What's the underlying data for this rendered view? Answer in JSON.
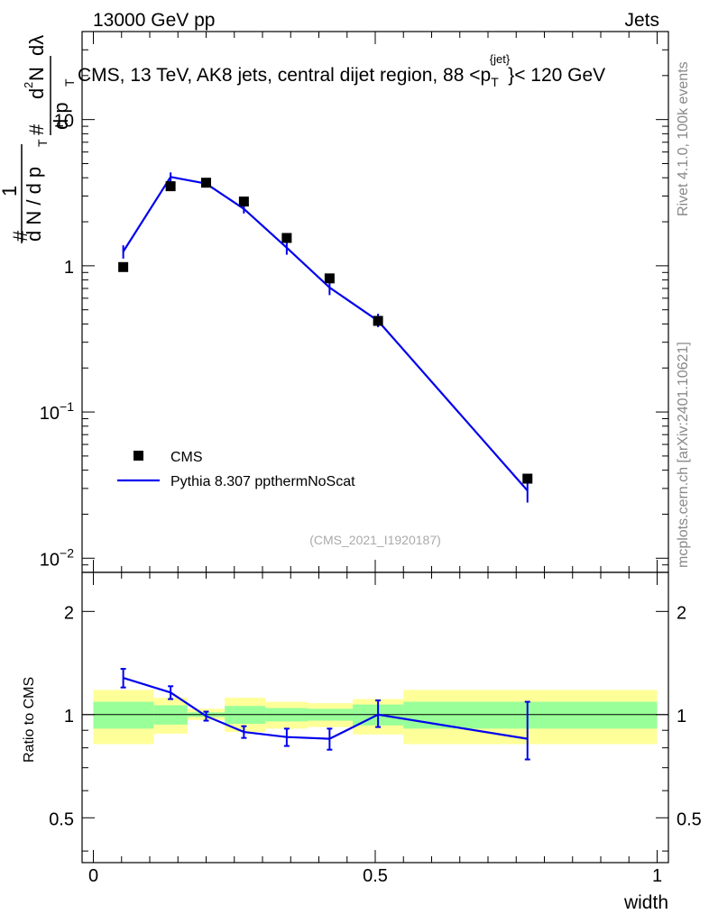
{
  "header": {
    "energy_label": "13000 GeV pp",
    "category_label": "Jets"
  },
  "side_labels": {
    "rivet": "Rivet 4.1.0,  100k events",
    "mcplots": "mcplots.cern.ch [arXiv:2401.10621]"
  },
  "chart_data": [
    {
      "type": "scatter",
      "panel": "main",
      "title": "CMS, 13 TeV, AK8 jets, central dijet region, 88 <p_T^{jet}< 120 GeV",
      "title_parts": {
        "prefix": "CMS, 13 TeV, AK8 jets, central dijet region, 88 <p",
        "sub": "T",
        "sup": "{jet}",
        "suffix": "}< 120 GeV"
      },
      "ylabel": "1/(dN/dp_T) d²N/(dp_T dλ)",
      "ylabel_parts": {
        "hash": "#",
        "one": "1",
        "dn_dpt": "d N / d p",
        "T": "T",
        "num": "d",
        "two": "2",
        "N": "N",
        "den": "d p",
        "dlambda": "dλ"
      },
      "yscale": "log",
      "ylim": [
        0.008,
        40
      ],
      "xlim": [
        -0.02,
        1.02
      ],
      "yticks": [
        {
          "value": 0.01,
          "base": "10",
          "exp": "−2"
        },
        {
          "value": 0.1,
          "base": "10",
          "exp": "−1"
        },
        {
          "value": 1,
          "base": "1",
          "exp": ""
        },
        {
          "value": 10,
          "base": "10",
          "exp": ""
        }
      ],
      "watermark": "(CMS_2021_I1920187)",
      "legend": {
        "position": "lower-left",
        "entries": [
          "CMS",
          "Pythia 8.307 ppthermNoScat"
        ]
      },
      "series": [
        {
          "name": "CMS",
          "marker": "square",
          "color": "#000000",
          "x": [
            0.053,
            0.137,
            0.2,
            0.267,
            0.343,
            0.419,
            0.505,
            0.77
          ],
          "y": [
            0.98,
            3.5,
            3.7,
            2.75,
            1.55,
            0.82,
            0.42,
            0.035
          ]
        },
        {
          "name": "Pythia 8.307 ppthermNoScat",
          "marker": "line",
          "color": "#0000ee",
          "x": [
            0.053,
            0.137,
            0.2,
            0.267,
            0.343,
            0.419,
            0.505,
            0.77
          ],
          "y": [
            1.25,
            4.05,
            3.65,
            2.45,
            1.33,
            0.71,
            0.42,
            0.029
          ],
          "err_lo": [
            1.12,
            3.75,
            3.5,
            2.28,
            1.19,
            0.63,
            0.38,
            0.024
          ],
          "err_hi": [
            1.38,
            4.35,
            3.82,
            2.62,
            1.47,
            0.8,
            0.47,
            0.034
          ]
        }
      ]
    },
    {
      "type": "line",
      "panel": "ratio",
      "ylabel": "Ratio to CMS",
      "xlabel": "width",
      "ylim": [
        0.37,
        2.6
      ],
      "xlim": [
        -0.02,
        1.02
      ],
      "yticks": [
        0.5,
        1,
        2
      ],
      "xticks": [
        {
          "value": 0,
          "label": "0"
        },
        {
          "value": 0.5,
          "label": "0.5"
        },
        {
          "value": 1,
          "label": "1"
        }
      ],
      "bands": {
        "bin_edges": [
          0.0,
          0.107,
          0.167,
          0.233,
          0.305,
          0.38,
          0.46,
          0.55,
          1.0
        ],
        "green_lo": [
          0.91,
          0.935,
          0.985,
          0.94,
          0.955,
          0.96,
          0.93,
          0.91
        ],
        "green_hi": [
          1.09,
          1.065,
          1.015,
          1.06,
          1.045,
          1.04,
          1.07,
          1.09
        ],
        "yellow_lo": [
          0.82,
          0.88,
          0.965,
          0.89,
          0.91,
          0.92,
          0.875,
          0.82
        ],
        "yellow_hi": [
          1.18,
          1.12,
          1.04,
          1.12,
          1.09,
          1.08,
          1.11,
          1.18
        ]
      },
      "series": [
        {
          "name": "Pythia 8.307 ppthermNoScat",
          "color": "#0000ee",
          "x": [
            0.053,
            0.137,
            0.2,
            0.267,
            0.343,
            0.419,
            0.505,
            0.77
          ],
          "y": [
            1.28,
            1.16,
            0.99,
            0.89,
            0.86,
            0.85,
            1.0,
            0.85
          ],
          "err_lo": [
            1.2,
            1.11,
            0.96,
            0.855,
            0.81,
            0.79,
            0.92,
            0.74
          ],
          "err_hi": [
            1.36,
            1.21,
            1.02,
            0.925,
            0.91,
            0.91,
            1.1,
            1.09
          ]
        }
      ]
    }
  ]
}
